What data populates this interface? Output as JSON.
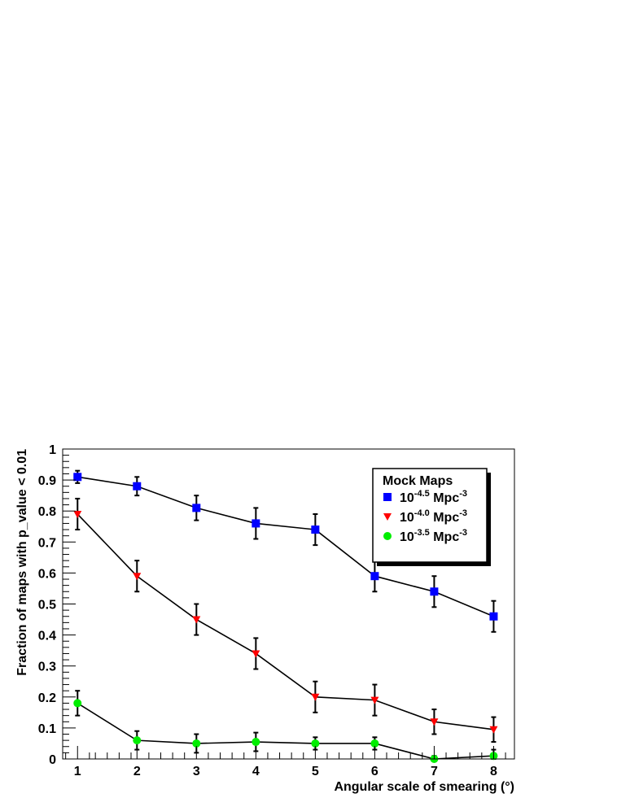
{
  "chart_data": {
    "type": "scatter",
    "xlabel": "Angular scale of smearing (°)",
    "ylabel": "Fraction of maps with p_value < 0.01",
    "xlim": [
      0.75,
      8.35
    ],
    "ylim": [
      0,
      1
    ],
    "x_ticks": [
      "1",
      "2",
      "3",
      "4",
      "5",
      "6",
      "7",
      "8"
    ],
    "y_ticks": [
      "0",
      "0.1",
      "0.2",
      "0.3",
      "0.4",
      "0.5",
      "0.6",
      "0.7",
      "0.8",
      "0.9",
      "1"
    ],
    "grid": false,
    "legend": {
      "title": "Mock Maps",
      "placement": "top-right",
      "entries": [
        {
          "base": "10",
          "exp": "-4.5",
          "unit": "Mpc",
          "unit_exp": "-3"
        },
        {
          "base": "10",
          "exp": "-4.0",
          "unit": "Mpc",
          "unit_exp": "-3"
        },
        {
          "base": "10",
          "exp": "-3.5",
          "unit": "Mpc",
          "unit_exp": "-3"
        }
      ]
    },
    "x": [
      1,
      2,
      3,
      4,
      5,
      6,
      7,
      8
    ],
    "series": [
      {
        "marker": "square",
        "color": "#0000ff",
        "values": [
          0.91,
          0.88,
          0.81,
          0.76,
          0.74,
          0.59,
          0.54,
          0.46
        ],
        "errors": [
          0.02,
          0.03,
          0.04,
          0.05,
          0.05,
          0.05,
          0.05,
          0.05
        ]
      },
      {
        "marker": "triangle-down",
        "color": "#ff0000",
        "values": [
          0.79,
          0.59,
          0.45,
          0.34,
          0.2,
          0.19,
          0.12,
          0.095
        ],
        "errors": [
          0.05,
          0.05,
          0.05,
          0.05,
          0.05,
          0.05,
          0.04,
          0.04
        ]
      },
      {
        "marker": "circle",
        "color": "#00ee00",
        "values": [
          0.18,
          0.06,
          0.05,
          0.055,
          0.05,
          0.05,
          0.0,
          0.01
        ],
        "errors": [
          0.04,
          0.03,
          0.03,
          0.03,
          0.02,
          0.02,
          0.01,
          0.02
        ]
      }
    ]
  }
}
